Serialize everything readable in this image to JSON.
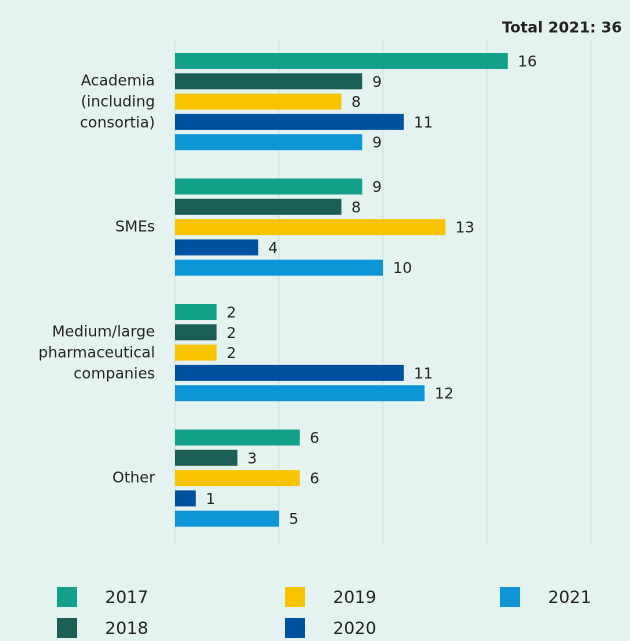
{
  "chart_data": {
    "type": "hbar",
    "title": "Total 2021: 36",
    "categories": [
      "Academia\n(including\nconsortia)",
      "SMEs",
      "Medium/large\npharmaceutical\ncompanies",
      "Other"
    ],
    "series": [
      {
        "name": "2017",
        "color": "#12a08a",
        "values": [
          16,
          9,
          2,
          6
        ]
      },
      {
        "name": "2018",
        "color": "#1b5e55",
        "values": [
          9,
          8,
          2,
          3
        ]
      },
      {
        "name": "2019",
        "color": "#f8c400",
        "values": [
          8,
          13,
          2,
          6
        ]
      },
      {
        "name": "2020",
        "color": "#0050a0",
        "values": [
          11,
          4,
          11,
          1
        ]
      },
      {
        "name": "2021",
        "color": "#0e95d6",
        "values": [
          9,
          10,
          12,
          5
        ]
      }
    ],
    "xlim": [
      0,
      20
    ],
    "xticks": [
      0,
      5,
      10,
      15,
      20
    ],
    "grid": true
  }
}
